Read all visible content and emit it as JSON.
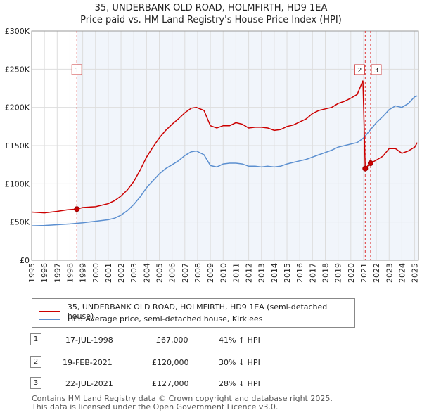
{
  "header": {
    "title_line1": "35, UNDERBANK OLD ROAD, HOLMFIRTH, HD9 1EA",
    "title_line2": "Price paid vs. HM Land Registry's House Price Index (HPI)"
  },
  "colors": {
    "property": "#cc0000",
    "hpi": "#5b8fd0",
    "grid": "#dddddd",
    "plot_bg": "#e8eff8",
    "vline": "#dd3333"
  },
  "chart_data": {
    "type": "line",
    "title": "35, UNDERBANK OLD ROAD, HOLMFIRTH, HD9 1EA",
    "subtitle": "Price paid vs. HM Land Registry's House Price Index (HPI)",
    "xlim": [
      1995,
      2025.3
    ],
    "ylim": [
      0,
      300000
    ],
    "y_ticks": [
      0,
      50000,
      100000,
      150000,
      200000,
      250000,
      300000
    ],
    "y_tick_labels": [
      "£0",
      "£50K",
      "£100K",
      "£150K",
      "£200K",
      "£250K",
      "£300K"
    ],
    "x_ticks": [
      1995,
      1996,
      1997,
      1998,
      1999,
      2000,
      2001,
      2002,
      2003,
      2004,
      2005,
      2006,
      2007,
      2008,
      2009,
      2010,
      2011,
      2012,
      2013,
      2014,
      2015,
      2016,
      2017,
      2018,
      2019,
      2020,
      2021,
      2022,
      2023,
      2024,
      2025
    ],
    "series": [
      {
        "name": "35, UNDERBANK OLD ROAD, HOLMFIRTH, HD9 1EA (semi-detached house)",
        "x": [
          1995,
          1996,
          1997,
          1997.8,
          1998.54,
          1999,
          2000,
          2001,
          2001.5,
          2002,
          2002.5,
          2003,
          2003.5,
          2004,
          2004.5,
          2005,
          2005.5,
          2006,
          2006.5,
          2007,
          2007.5,
          2007.9,
          2008.5,
          2009,
          2009.5,
          2010,
          2010.5,
          2011,
          2011.5,
          2012,
          2012.5,
          2013,
          2013.5,
          2014,
          2014.5,
          2015,
          2015.5,
          2016,
          2016.5,
          2017,
          2017.5,
          2018,
          2018.5,
          2019,
          2019.5,
          2020,
          2020.5,
          2020.95,
          2021.13,
          2021.3,
          2021.55,
          2022,
          2022.5,
          2023,
          2023.5,
          2024,
          2024.5,
          2025,
          2025.2
        ],
        "values": [
          63000,
          62000,
          64000,
          66000,
          67000,
          69000,
          70000,
          74000,
          78000,
          84000,
          92000,
          103000,
          118000,
          135000,
          148000,
          160000,
          170000,
          178000,
          185000,
          193000,
          199000,
          200000,
          196000,
          176000,
          173000,
          176000,
          176000,
          180000,
          178000,
          173000,
          174000,
          174000,
          173000,
          170000,
          171000,
          175000,
          177000,
          181000,
          185000,
          192000,
          196000,
          198000,
          200000,
          205000,
          208000,
          212000,
          217000,
          235000,
          120000,
          123000,
          127000,
          131000,
          136000,
          146000,
          146000,
          140000,
          143000,
          148000,
          154000
        ]
      },
      {
        "name": "HPI: Average price, semi-detached house, Kirklees",
        "x": [
          1995,
          1996,
          1997,
          1998,
          1999,
          2000,
          2001,
          2001.5,
          2002,
          2002.5,
          2003,
          2003.5,
          2004,
          2004.5,
          2005,
          2005.5,
          2006,
          2006.5,
          2007,
          2007.5,
          2007.9,
          2008.5,
          2009,
          2009.5,
          2010,
          2010.5,
          2011,
          2011.5,
          2012,
          2012.5,
          2013,
          2013.5,
          2014,
          2014.5,
          2015,
          2015.5,
          2016,
          2016.5,
          2017,
          2017.5,
          2018,
          2018.5,
          2019,
          2019.5,
          2020,
          2020.5,
          2021,
          2021.5,
          2022,
          2022.5,
          2023,
          2023.5,
          2024,
          2024.5,
          2025,
          2025.2
        ],
        "values": [
          45000,
          45500,
          46500,
          47500,
          49000,
          51000,
          53000,
          55000,
          59000,
          65000,
          73000,
          83000,
          95000,
          104000,
          113000,
          120000,
          125000,
          130000,
          137000,
          142000,
          143000,
          138000,
          124000,
          122000,
          126000,
          127000,
          127000,
          126000,
          123000,
          123000,
          122000,
          123000,
          122000,
          123000,
          126000,
          128000,
          130000,
          132000,
          135000,
          138000,
          141000,
          144000,
          148000,
          150000,
          152000,
          154000,
          160000,
          170000,
          180000,
          188000,
          197000,
          202000,
          200000,
          205000,
          214000,
          215000
        ]
      }
    ],
    "transactions": [
      {
        "id": "1",
        "x": 1998.54,
        "price": 67000
      },
      {
        "id": "2",
        "x": 2021.13,
        "price": 120000
      },
      {
        "id": "3",
        "x": 2021.55,
        "price": 127000
      }
    ],
    "legend_position": "below"
  },
  "legend": {
    "property_label": "35, UNDERBANK OLD ROAD, HOLMFIRTH, HD9 1EA (semi-detached house)",
    "hpi_label": "HPI: Average price, semi-detached house, Kirklees"
  },
  "transactions_table": [
    {
      "num": "1",
      "date": "17-JUL-1998",
      "price": "£67,000",
      "hpi": "41% ↑ HPI"
    },
    {
      "num": "2",
      "date": "19-FEB-2021",
      "price": "£120,000",
      "hpi": "30% ↓ HPI"
    },
    {
      "num": "3",
      "date": "22-JUL-2021",
      "price": "£127,000",
      "hpi": "28% ↓ HPI"
    }
  ],
  "footer": {
    "line1": "Contains HM Land Registry data © Crown copyright and database right 2025.",
    "line2": "This data is licensed under the Open Government Licence v3.0."
  }
}
